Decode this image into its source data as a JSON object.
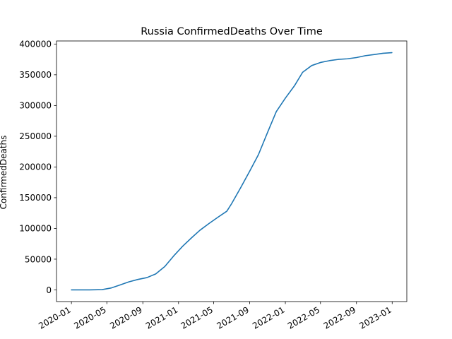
{
  "chart_data": {
    "type": "line",
    "title": "Russia  ConfirmedDeaths Over Time",
    "xlabel": "",
    "ylabel": "ConfirmedDeaths",
    "x_ticks": [
      "2020-01",
      "2020-05",
      "2020-09",
      "2021-01",
      "2021-05",
      "2021-09",
      "2022-01",
      "2022-05",
      "2022-09",
      "2023-01"
    ],
    "y_ticks": [
      "0",
      "50000",
      "100000",
      "150000",
      "200000",
      "250000",
      "300000",
      "350000",
      "400000"
    ],
    "ylim": [
      -19000,
      405000
    ],
    "grid": false,
    "legend": "none",
    "line_color": "#1f77b4",
    "series": [
      {
        "x": [
          "2020-01-01",
          "2020-03-01",
          "2020-04-15",
          "2020-05-15",
          "2020-06-15",
          "2020-07-15",
          "2020-08-15",
          "2020-09-15",
          "2020-10-15",
          "2020-11-15",
          "2020-12-15",
          "2021-01-15",
          "2021-02-15",
          "2021-03-15",
          "2021-04-15",
          "2021-05-15",
          "2021-06-15",
          "2021-07-01",
          "2021-08-01",
          "2021-09-01",
          "2021-10-01",
          "2021-11-01",
          "2021-12-01",
          "2022-01-01",
          "2022-02-01",
          "2022-03-01",
          "2022-04-01",
          "2022-05-01",
          "2022-06-01",
          "2022-07-01",
          "2022-08-01",
          "2022-09-01",
          "2022-10-01",
          "2022-11-01",
          "2022-12-01",
          "2022-12-31"
        ],
        "values": [
          0,
          0,
          500,
          3000,
          8000,
          13000,
          17000,
          20000,
          26000,
          38000,
          55000,
          71000,
          85000,
          97000,
          108000,
          118000,
          128000,
          140000,
          166000,
          193000,
          220000,
          256000,
          290000,
          312000,
          332000,
          354000,
          365000,
          370000,
          373000,
          375000,
          376000,
          378000,
          381000,
          383000,
          385000,
          386000
        ]
      }
    ]
  }
}
